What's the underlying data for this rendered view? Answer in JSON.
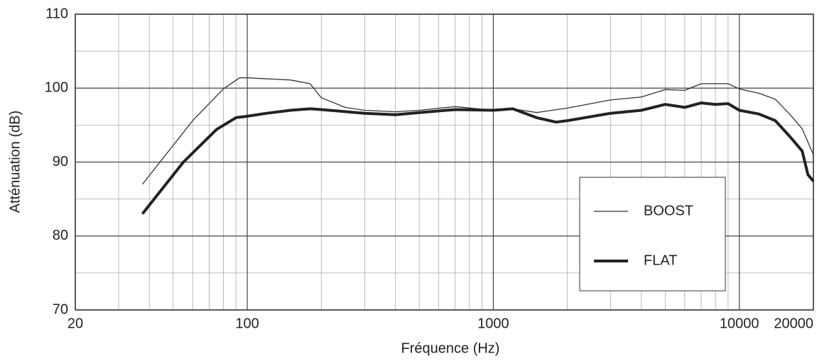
{
  "chart_data": {
    "type": "line",
    "x_label": "Fréquence (Hz)",
    "y_label": "Atténuation (dB)",
    "log_x": true,
    "grid": true,
    "legend_position": "lower right",
    "xlim": [
      20,
      20000
    ],
    "ylim": [
      70,
      110
    ],
    "xticks": [
      20,
      100,
      1000,
      10000,
      20000
    ],
    "yticks": [
      70,
      80,
      90,
      100,
      110
    ],
    "x_minor_ticks": [
      30,
      40,
      50,
      60,
      70,
      80,
      90,
      200,
      300,
      400,
      500,
      600,
      700,
      800,
      900,
      2000,
      3000,
      4000,
      5000,
      6000,
      7000,
      8000,
      9000
    ],
    "y_minor_ticks": [
      75,
      85,
      95,
      105
    ],
    "series": [
      {
        "name": "BOOST",
        "color": "#333333",
        "width": 1.3,
        "x": [
          37.5,
          60,
          80,
          93,
          100,
          150,
          180,
          200,
          250,
          300,
          400,
          500,
          700,
          1000,
          1200,
          1500,
          2000,
          3000,
          4000,
          5000,
          6000,
          7000,
          8000,
          9000,
          10000,
          12000,
          14000,
          16000,
          18000,
          20000
        ],
        "values": [
          87,
          95.6,
          99.9,
          101.4,
          101.4,
          101.1,
          100.6,
          98.7,
          97.4,
          97.0,
          96.8,
          97.0,
          97.5,
          97.0,
          97.2,
          96.7,
          97.3,
          98.4,
          98.8,
          99.8,
          99.7,
          100.6,
          100.6,
          100.6,
          99.9,
          99.3,
          98.5,
          96.5,
          94.5,
          91
        ]
      },
      {
        "name": "FLAT",
        "color": "#222222",
        "width": 4,
        "x": [
          37.5,
          55,
          75,
          90,
          100,
          120,
          150,
          180,
          200,
          300,
          400,
          500,
          700,
          1000,
          1200,
          1500,
          1800,
          2000,
          3000,
          4000,
          5000,
          6000,
          7000,
          8000,
          9000,
          10000,
          12000,
          14000,
          16000,
          18000,
          19000,
          20000
        ],
        "values": [
          83,
          90,
          94.4,
          96.0,
          96.2,
          96.6,
          97.0,
          97.2,
          97.1,
          96.6,
          96.4,
          96.7,
          97.1,
          97.0,
          97.2,
          96.0,
          95.4,
          95.6,
          96.6,
          97.0,
          97.8,
          97.4,
          98.0,
          97.8,
          97.9,
          97.0,
          96.5,
          95.6,
          93.5,
          91.5,
          88.3,
          87.4
        ]
      }
    ]
  }
}
